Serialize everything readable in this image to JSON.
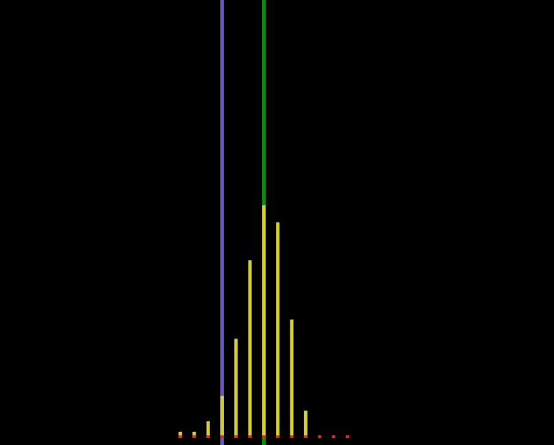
{
  "chart_data": {
    "type": "bar",
    "title": "",
    "xlabel": "",
    "ylabel": "",
    "grid": false,
    "legend": "none",
    "x": [
      -3,
      -2,
      -1,
      0,
      1,
      2,
      3,
      4,
      5,
      6,
      7,
      8,
      9
    ],
    "values": [
      0.3,
      0.3,
      0.8,
      2.0,
      4.7,
      8.4,
      11.0,
      10.2,
      5.6,
      1.3,
      0,
      0,
      0
    ],
    "ylim": [
      0,
      11.0
    ],
    "reference_lines": [
      {
        "x": 0,
        "color": "#6a4fd0"
      },
      {
        "x": 3,
        "color": "#0c8f10"
      }
    ],
    "colors": {
      "background": "#000000",
      "bar": "#d4cf32",
      "bar_base": "#e0291c"
    }
  }
}
